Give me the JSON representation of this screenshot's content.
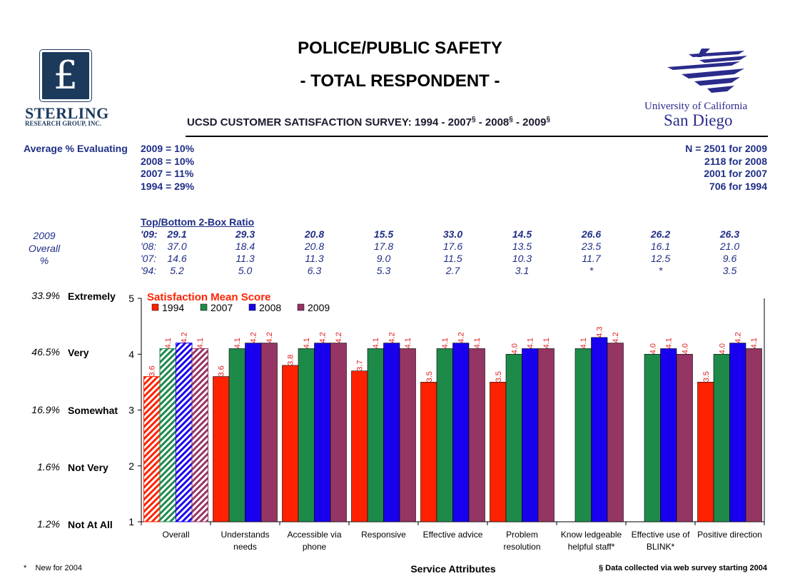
{
  "header": {
    "title": "POLICE/PUBLIC SAFETY",
    "subtitle": "- TOTAL RESPONDENT -",
    "survey_title": "UCSD CUSTOMER SATISFACTION SURVEY: 1994 - 2007",
    "survey_sep1": " - 2008",
    "survey_sep2": " - 2009",
    "section_mark": "§"
  },
  "logos": {
    "sterling_symbol": "£",
    "sterling_name": "STERLING",
    "sterling_sub": "RESEARCH GROUP, INC.",
    "uc_name": "University of California",
    "uc_campus": "San Diego"
  },
  "stats": {
    "avg_label": "Average % Evaluating",
    "avg_lines": [
      "2009 = 10%",
      "2008 = 10%",
      "2007 = 11%",
      "1994 = 29%"
    ],
    "n_lines": [
      "N = 2501 for 2009",
      "2118 for 2008",
      "2001 for 2007",
      "706 for 1994"
    ]
  },
  "ratio": {
    "title": "Top/Bottom 2-Box Ratio",
    "overall_label": [
      "2009",
      "Overall",
      "%"
    ],
    "rows": [
      {
        "label": "'09:",
        "values": [
          "29.1",
          "29.3",
          "20.8",
          "15.5",
          "33.0",
          "14.5",
          "26.6",
          "26.2",
          "26.3"
        ]
      },
      {
        "label": "'08:",
        "values": [
          "37.0",
          "18.4",
          "20.8",
          "17.8",
          "17.6",
          "13.5",
          "23.5",
          "16.1",
          "21.0"
        ]
      },
      {
        "label": "'07:",
        "values": [
          "14.6",
          "11.3",
          "11.3",
          "9.0",
          "11.5",
          "10.3",
          "11.7",
          "12.5",
          "9.6"
        ]
      },
      {
        "label": "'94:",
        "values": [
          "5.2",
          "5.0",
          "6.3",
          "5.3",
          "2.7",
          "3.1",
          "*",
          "*",
          "3.5"
        ]
      }
    ]
  },
  "scale": [
    {
      "pct": "33.9%",
      "word": "Extremely"
    },
    {
      "pct": "46.5%",
      "word": "Very"
    },
    {
      "pct": "16.9%",
      "word": "Somewhat"
    },
    {
      "pct": "1.6%",
      "word": "Not Very"
    },
    {
      "pct": "1.2%",
      "word": "Not At All"
    }
  ],
  "footer": {
    "note_star": "*",
    "note_new": "New for 2004",
    "xaxis_title": "Service Attributes",
    "note_web": "§ Data collected via web survey starting 2004"
  },
  "chart_data": {
    "type": "bar",
    "title": "Satisfaction Mean Score",
    "xlabel": "Service Attributes",
    "ylabel": "",
    "ylim": [
      1,
      5
    ],
    "yticks": [
      "1",
      "2",
      "3",
      "4",
      "5"
    ],
    "legend_position": "top-left",
    "categories": [
      [
        "Overall"
      ],
      [
        "Understands",
        "needs"
      ],
      [
        "Accessible via",
        "phone"
      ],
      [
        "Responsive"
      ],
      [
        "Effective advice"
      ],
      [
        "Problem",
        "resolution"
      ],
      [
        "Know ledgeable",
        "helpful staff*"
      ],
      [
        "Effective use of",
        "BLINK*"
      ],
      [
        "Positive direction"
      ]
    ],
    "series": [
      {
        "name": "1994",
        "color": "#ff2200",
        "values": [
          3.6,
          3.6,
          3.8,
          3.7,
          3.5,
          3.5,
          null,
          null,
          3.5
        ],
        "labels": [
          "3.6",
          "3.6",
          "3.8",
          "3.7",
          "3.5",
          "3.5",
          "",
          "",
          "3.5"
        ]
      },
      {
        "name": "2007",
        "color": "#1e8a4a",
        "values": [
          4.1,
          4.1,
          4.1,
          4.1,
          4.1,
          4.0,
          4.1,
          4.0,
          4.0
        ],
        "labels": [
          "4.1",
          "4.1",
          "4.1",
          "4.1",
          "4.1",
          "4.0",
          "4.1",
          "4.0",
          "4.0"
        ]
      },
      {
        "name": "2008",
        "color": "#1800ee",
        "values": [
          4.2,
          4.2,
          4.2,
          4.2,
          4.2,
          4.1,
          4.3,
          4.1,
          4.2
        ],
        "labels": [
          "4.2",
          "4.2",
          "4.2",
          "4.2",
          "4.2",
          "4.1",
          "4.3",
          "4.1",
          "4.2"
        ]
      },
      {
        "name": "2009",
        "color": "#953563",
        "values": [
          4.1,
          4.2,
          4.2,
          4.1,
          4.1,
          4.1,
          4.2,
          4.0,
          4.1
        ],
        "labels": [
          "4.1",
          "4.2",
          "4.2",
          "4.1",
          "4.1",
          "4.1",
          "4.2",
          "4.0",
          "4.1"
        ]
      }
    ],
    "hatched_category": "Overall",
    "label_color": "#e02020"
  }
}
